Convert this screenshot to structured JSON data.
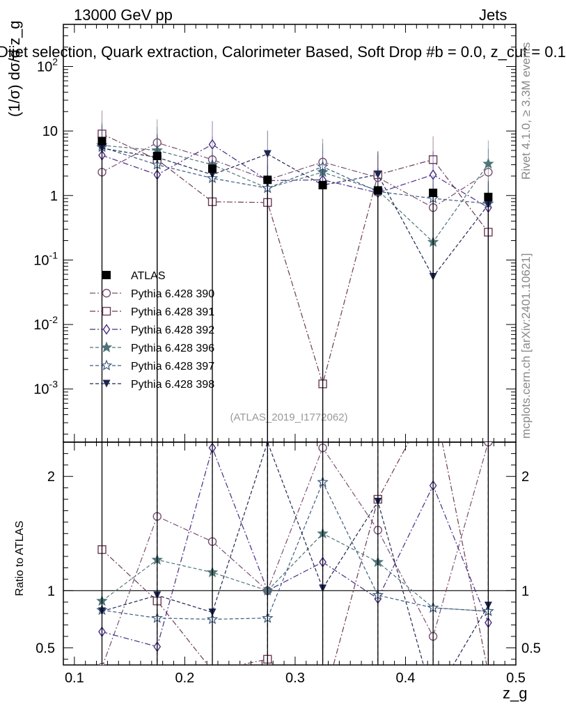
{
  "header": {
    "left": "13000 GeV pp",
    "right": "Jets",
    "title": "Dijet selection, Quark extraction, Calorimeter Based, Soft Drop #b = 0.0, z_cut = 0.1"
  },
  "side_labels": {
    "rivet": "Rivet 4.1.0, ≥ 3.3M events",
    "mcplots": "mcplots.cern.ch [arXiv:2401.10621]"
  },
  "watermark": "(ATLAS_2019_I1772062)",
  "chart_data": {
    "type": "line",
    "x": [
      0.125,
      0.175,
      0.225,
      0.275,
      0.325,
      0.375,
      0.425,
      0.475
    ],
    "xlabel": "z_g",
    "ylabel_main": "(1/σ) dσ/d z_g",
    "ylabel_ratio": "Ratio to ATLAS",
    "xlim": [
      0.09,
      0.5
    ],
    "xticks": [
      "0.1",
      "0.2",
      "0.3",
      "0.4",
      "0.5"
    ],
    "main_yscale": "log",
    "main_ylim": [
      0.00015,
      450
    ],
    "main_yticks": [
      "10^-3",
      "10^-2",
      "10^-1",
      "1",
      "10",
      "10^2"
    ],
    "ratio_ylim": [
      0.35,
      2.3
    ],
    "ratio_yticks": [
      "0.5",
      "1",
      "2"
    ],
    "legend_position": "middle-left",
    "reference": {
      "name": "ATLAS",
      "values": [
        7.0,
        4.1,
        2.6,
        1.75,
        1.45,
        1.2,
        1.1,
        0.95
      ],
      "color": "#000000"
    },
    "series": [
      {
        "name": "Pythia 6.428 390",
        "marker": "circle-open",
        "color": "#7a4f73",
        "dash": "dashdot",
        "values": [
          2.3,
          6.6,
          3.6,
          1.75,
          3.3,
          1.9,
          0.65,
          2.3
        ],
        "ratio": [
          0.33,
          1.65,
          1.43,
          1.0,
          2.25,
          1.53,
          0.6,
          2.3
        ]
      },
      {
        "name": "Pythia 6.428 391",
        "marker": "square-open",
        "color": "#6e3a56",
        "dash": "dashdot",
        "values": [
          9.0,
          3.6,
          0.8,
          0.78,
          0.0012,
          2.1,
          3.6,
          0.27
        ],
        "ratio": [
          1.36,
          0.91,
          0.3,
          0.4,
          0.0,
          1.8,
          3.2,
          0.28
        ]
      },
      {
        "name": "Pythia 6.428 392",
        "marker": "diamond-open",
        "color": "#4a2a86",
        "dash": "dashdot",
        "values": [
          4.2,
          2.1,
          6.2,
          1.7,
          1.75,
          1.1,
          2.1,
          0.65
        ],
        "ratio": [
          0.64,
          0.51,
          2.25,
          1.0,
          1.25,
          0.93,
          1.92,
          0.72
        ]
      },
      {
        "name": "Pythia 6.428 396",
        "marker": "star-filled",
        "color": "#4e7478",
        "dash": "dashed",
        "values": [
          6.0,
          5.0,
          3.0,
          1.3,
          2.3,
          1.2,
          0.19,
          3.1
        ],
        "ratio": [
          0.91,
          1.27,
          1.16,
          1.0,
          1.5,
          1.25,
          0.85,
          0.82
        ]
      },
      {
        "name": "Pythia 6.428 397",
        "marker": "star-open",
        "color": "#3c5a82",
        "dash": "dashed",
        "values": [
          5.6,
          3.0,
          1.85,
          1.3,
          2.8,
          1.15,
          0.9,
          0.75
        ],
        "ratio": [
          0.83,
          0.76,
          0.75,
          0.76,
          1.95,
          0.96,
          0.85,
          0.82
        ]
      },
      {
        "name": "Pythia 6.428 398",
        "marker": "triangle-down-filled",
        "color": "#1e2650",
        "dash": "dashed",
        "values": [
          5.4,
          3.9,
          2.1,
          4.4,
          1.45,
          2.1,
          0.055,
          0.72
        ],
        "ratio": [
          0.82,
          0.96,
          0.81,
          2.3,
          1.02,
          1.78,
          0.05,
          0.87
        ]
      }
    ]
  }
}
